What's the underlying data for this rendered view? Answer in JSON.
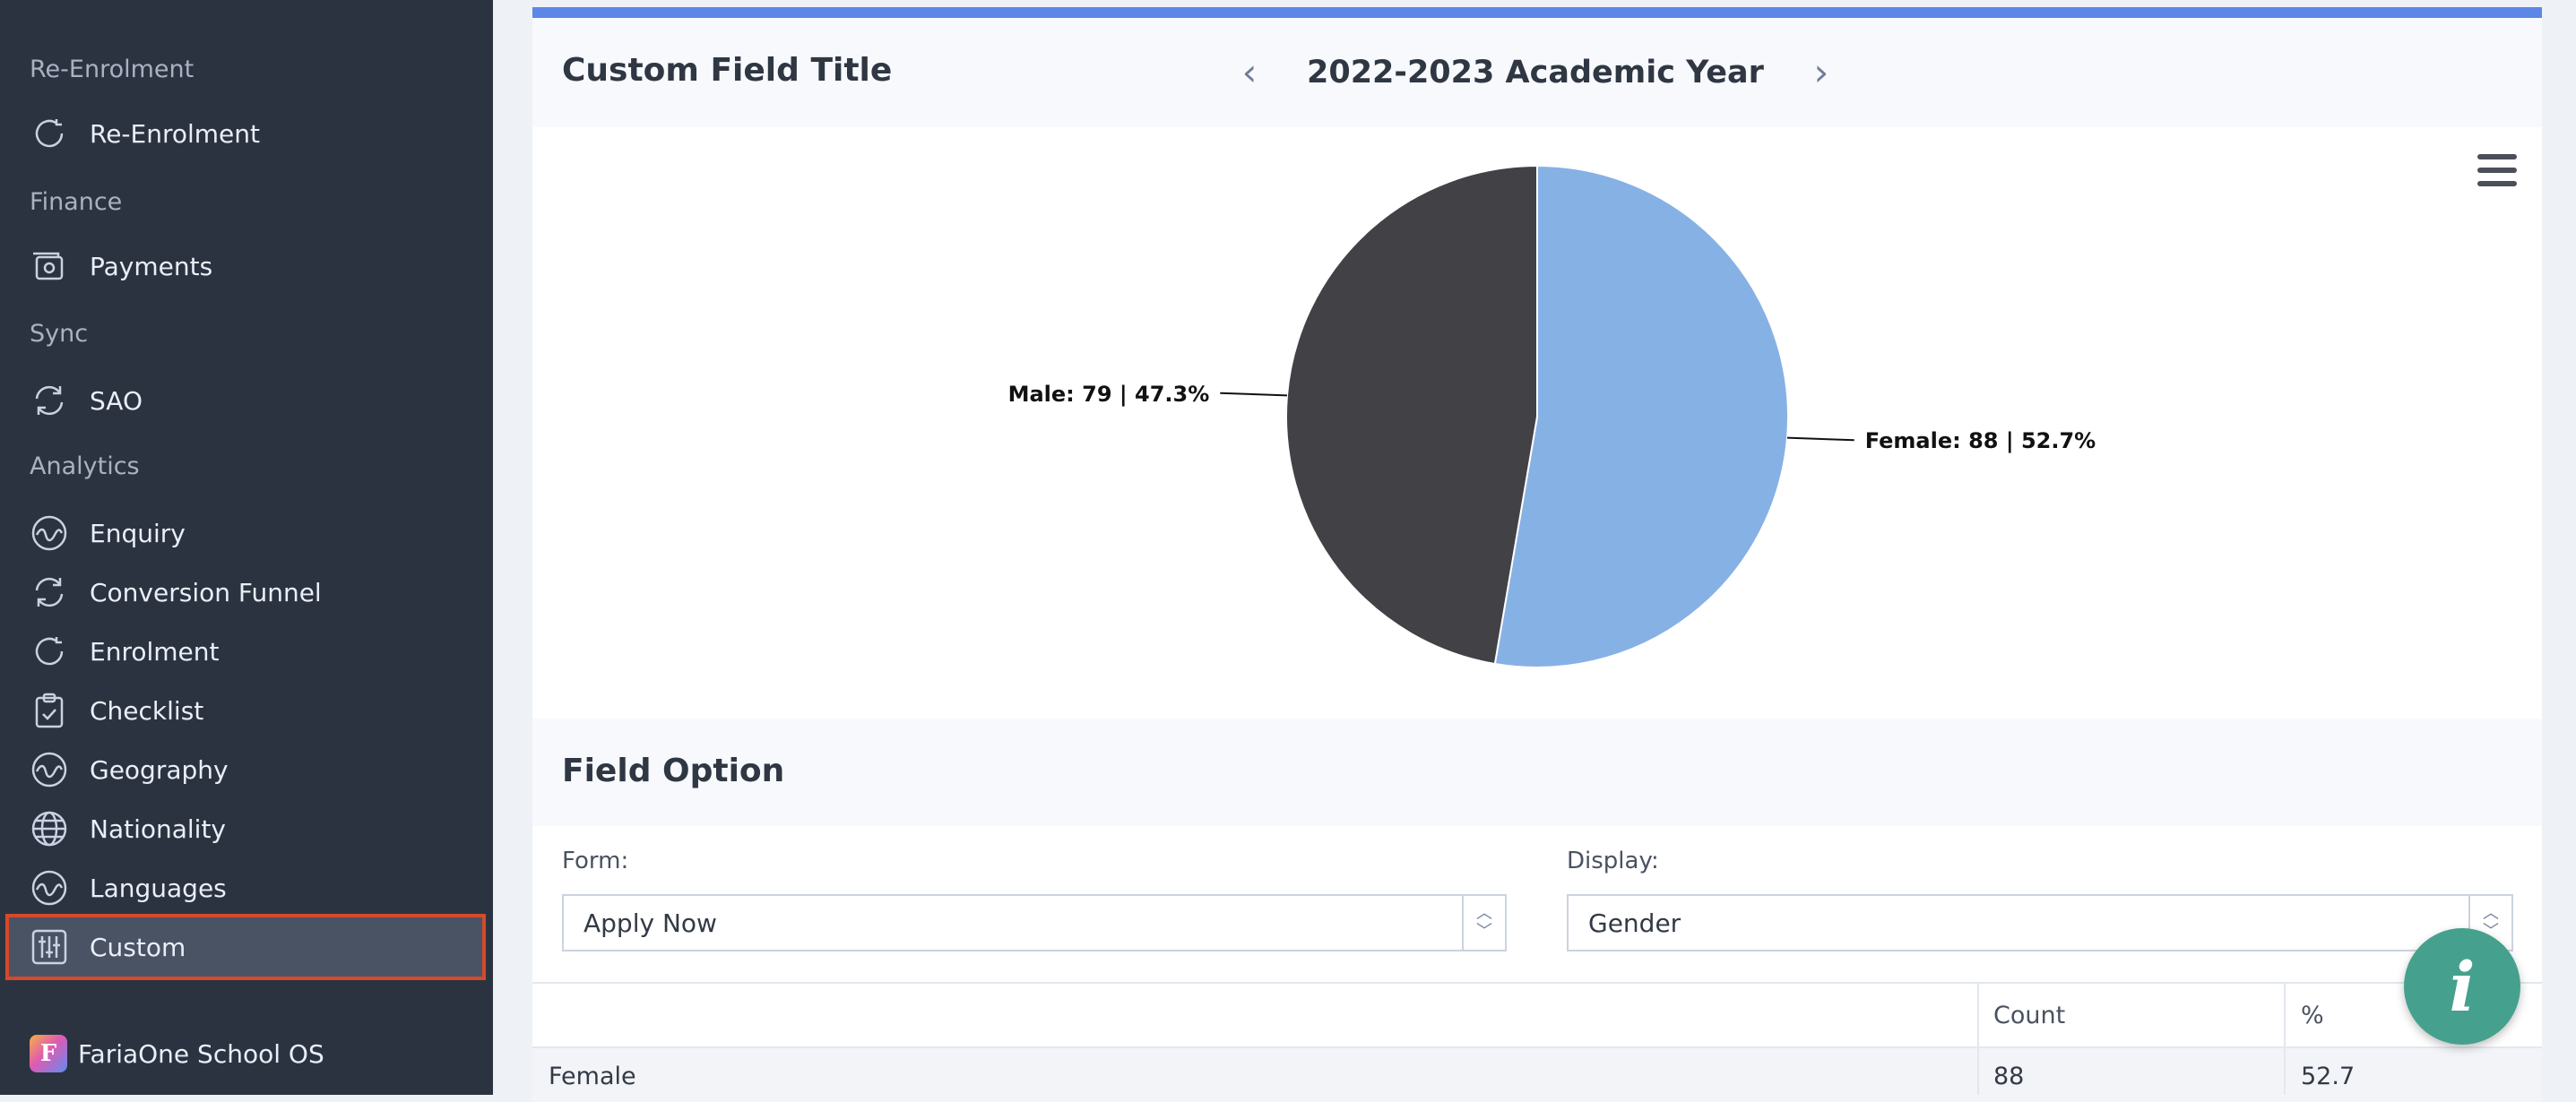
{
  "sidebar": {
    "sections": [
      {
        "label": "Re-Enrolment"
      },
      {
        "label": "Finance"
      },
      {
        "label": "Sync"
      },
      {
        "label": "Analytics"
      }
    ],
    "items": [
      {
        "label": "Re-Enrolment",
        "icon": "refresh-icon"
      },
      {
        "label": "Payments",
        "icon": "payments-icon"
      },
      {
        "label": "SAO",
        "icon": "sync-icon"
      },
      {
        "label": "Enquiry",
        "icon": "wave-icon"
      },
      {
        "label": "Conversion Funnel",
        "icon": "sync-icon"
      },
      {
        "label": "Enrolment",
        "icon": "refresh-icon"
      },
      {
        "label": "Checklist",
        "icon": "clipboard-check-icon"
      },
      {
        "label": "Geography",
        "icon": "wave-icon"
      },
      {
        "label": "Nationality",
        "icon": "globe-icon"
      },
      {
        "label": "Languages",
        "icon": "wave-icon"
      },
      {
        "label": "Custom",
        "icon": "sliders-icon",
        "active": true
      }
    ],
    "brand": "FariaOne School OS"
  },
  "header": {
    "title": "Custom Field Title",
    "year": "2022-2023 Academic Year",
    "prev": "‹",
    "next": "›"
  },
  "chart_data": {
    "type": "pie",
    "slices": [
      {
        "name": "Female",
        "value": 88,
        "percent": 52.7,
        "color": "#86b1e5",
        "label": "Female: 88 | 52.7%"
      },
      {
        "name": "Male",
        "value": 79,
        "percent": 47.3,
        "color": "#414146",
        "label": "Male: 79 | 47.3%"
      }
    ]
  },
  "field_option": {
    "heading": "Field Option",
    "form_label": "Form:",
    "form_value": "Apply Now",
    "display_label": "Display:",
    "display_value": "Gender"
  },
  "table": {
    "headers": [
      "",
      "Count",
      "%"
    ],
    "rows": [
      [
        "Female",
        "88",
        "52.7"
      ]
    ]
  },
  "info_button": "i",
  "colors": {
    "sidebar_bg": "#2c3340",
    "accent_bar": "#5d87e6",
    "active_outline": "#d44a2a",
    "info_button": "#45a18d"
  }
}
